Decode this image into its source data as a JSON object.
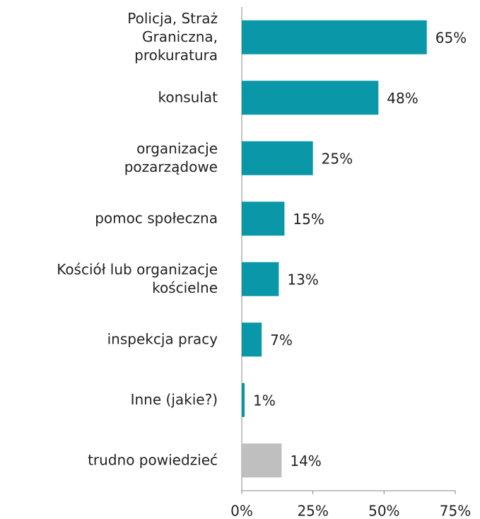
{
  "chart_data": {
    "type": "bar",
    "orientation": "horizontal",
    "categories": [
      "Policja, Straż\nGraniczna,\nprokuratura",
      "konsulat",
      "organizacje\npozarządowe",
      "pomoc społeczna",
      "Kościół lub organizacje\nkościelne",
      "inspekcja pracy",
      "Inne (jakie?)",
      "trudno powiedzieć"
    ],
    "values": [
      65,
      48,
      25,
      15,
      13,
      7,
      1,
      14
    ],
    "value_labels": [
      "65%",
      "48%",
      "25%",
      "15%",
      "13%",
      "7%",
      "1%",
      "14%"
    ],
    "colors": [
      "#0a97a8",
      "#0a97a8",
      "#0a97a8",
      "#0a97a8",
      "#0a97a8",
      "#0a97a8",
      "#0a97a8",
      "#bfbfbf"
    ],
    "xlim": [
      0,
      75
    ],
    "xticks": [
      {
        "value": 0,
        "label": "0%"
      },
      {
        "value": 25,
        "label": "25%"
      },
      {
        "value": 50,
        "label": "50%"
      },
      {
        "value": 75,
        "label": "75%"
      }
    ]
  }
}
